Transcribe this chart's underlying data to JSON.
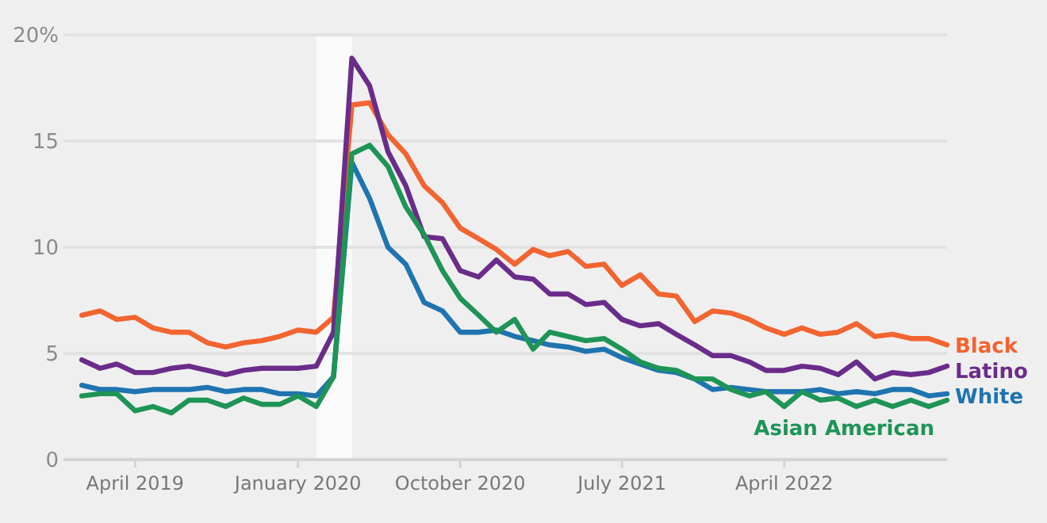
{
  "chart_data": {
    "type": "line",
    "x": [
      "2019-01",
      "2019-02",
      "2019-03",
      "2019-04",
      "2019-05",
      "2019-06",
      "2019-07",
      "2019-08",
      "2019-09",
      "2019-10",
      "2019-11",
      "2019-12",
      "2020-01",
      "2020-02",
      "2020-03",
      "2020-04",
      "2020-05",
      "2020-06",
      "2020-07",
      "2020-08",
      "2020-09",
      "2020-10",
      "2020-11",
      "2020-12",
      "2021-01",
      "2021-02",
      "2021-03",
      "2021-04",
      "2021-05",
      "2021-06",
      "2021-07",
      "2021-08",
      "2021-09",
      "2021-10",
      "2021-11",
      "2021-12",
      "2022-01",
      "2022-02",
      "2022-03",
      "2022-04",
      "2022-05",
      "2022-06",
      "2022-07",
      "2022-08",
      "2022-09",
      "2022-10",
      "2022-11",
      "2022-12",
      "2023-01"
    ],
    "series": [
      {
        "name": "Black",
        "color": "#f26430",
        "values": [
          6.8,
          7.0,
          6.6,
          6.7,
          6.2,
          6.0,
          6.0,
          5.5,
          5.3,
          5.5,
          5.6,
          5.8,
          6.1,
          6.0,
          6.7,
          16.7,
          16.8,
          15.3,
          14.4,
          12.9,
          12.1,
          10.9,
          10.4,
          9.9,
          9.2,
          9.9,
          9.6,
          9.8,
          9.1,
          9.2,
          8.2,
          8.7,
          7.8,
          7.7,
          6.5,
          7.0,
          6.9,
          6.6,
          6.2,
          5.9,
          6.2,
          5.9,
          6.0,
          6.4,
          5.8,
          5.9,
          5.7,
          5.7,
          5.4
        ]
      },
      {
        "name": "Latino",
        "color": "#6a2c8a",
        "values": [
          4.7,
          4.3,
          4.5,
          4.1,
          4.1,
          4.3,
          4.4,
          4.2,
          4.0,
          4.2,
          4.3,
          4.3,
          4.3,
          4.4,
          6.0,
          18.9,
          17.6,
          14.5,
          12.9,
          10.5,
          10.4,
          8.9,
          8.6,
          9.4,
          8.6,
          8.5,
          7.8,
          7.8,
          7.3,
          7.4,
          6.6,
          6.3,
          6.4,
          5.9,
          5.4,
          4.9,
          4.9,
          4.6,
          4.2,
          4.2,
          4.4,
          4.3,
          4.0,
          4.6,
          3.8,
          4.1,
          4.0,
          4.1,
          4.4
        ]
      },
      {
        "name": "White",
        "color": "#1f74b0",
        "values": [
          3.5,
          3.3,
          3.3,
          3.2,
          3.3,
          3.3,
          3.3,
          3.4,
          3.2,
          3.3,
          3.3,
          3.1,
          3.1,
          3.0,
          3.9,
          14.0,
          12.3,
          10.0,
          9.2,
          7.4,
          7.0,
          6.0,
          6.0,
          6.1,
          5.8,
          5.6,
          5.4,
          5.3,
          5.1,
          5.2,
          4.8,
          4.5,
          4.2,
          4.1,
          3.8,
          3.3,
          3.4,
          3.3,
          3.2,
          3.2,
          3.2,
          3.3,
          3.1,
          3.2,
          3.1,
          3.3,
          3.3,
          3.0,
          3.1
        ]
      },
      {
        "name": "Asian American",
        "color": "#1e9457",
        "values": [
          3.0,
          3.1,
          3.1,
          2.3,
          2.5,
          2.2,
          2.8,
          2.8,
          2.5,
          2.9,
          2.6,
          2.6,
          3.0,
          2.5,
          3.9,
          14.4,
          14.8,
          13.8,
          11.9,
          10.6,
          8.9,
          7.6,
          6.8,
          6.0,
          6.6,
          5.2,
          6.0,
          5.8,
          5.6,
          5.7,
          5.2,
          4.6,
          4.3,
          4.2,
          3.8,
          3.8,
          3.3,
          3.0,
          3.2,
          2.5,
          3.2,
          2.8,
          2.9,
          2.5,
          2.8,
          2.5,
          2.8,
          2.5,
          2.8
        ]
      }
    ],
    "xlim": [
      "2018-12",
      "2023-01"
    ],
    "xticks": [
      {
        "value": "2019-04",
        "label": "April 2019"
      },
      {
        "value": "2020-01",
        "label": "January 2020"
      },
      {
        "value": "2020-10",
        "label": "October 2020"
      },
      {
        "value": "2021-07",
        "label": "July 2021"
      },
      {
        "value": "2022-04",
        "label": "April 2022"
      }
    ],
    "ylim": [
      0,
      20
    ],
    "yticks": [
      0,
      5,
      10,
      15,
      {
        "value": 20,
        "label": "20%"
      }
    ],
    "bands": [
      {
        "axis": "x",
        "from": "2020-02",
        "to": "2020-04",
        "color": "#fafafa"
      }
    ],
    "grid": "y",
    "line_style": "solid"
  }
}
